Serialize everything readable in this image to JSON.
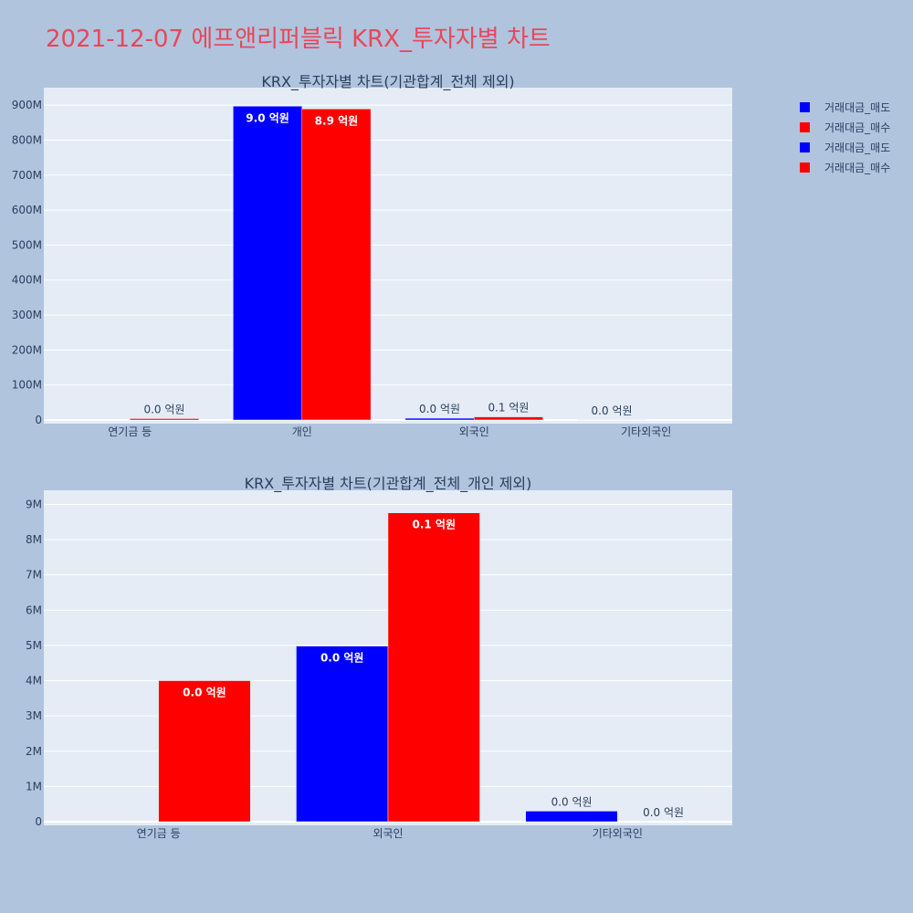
{
  "page_title": "2021-12-07 에프앤리퍼블릭 KRX_투자자별 차트",
  "colors": {
    "sell": "#0000ff",
    "buy": "#ff0000",
    "plot_bg": "#e5ecf6",
    "paper_bg": "#b0c4de",
    "title": "#e8475a",
    "text": "#2a3f5f"
  },
  "legend": [
    {
      "name": "거래대금_매도",
      "color": "#0000ff"
    },
    {
      "name": "거래대금_매수",
      "color": "#ff0000"
    },
    {
      "name": "거래대금_매도",
      "color": "#0000ff"
    },
    {
      "name": "거래대금_매수",
      "color": "#ff0000"
    }
  ],
  "chart_data": [
    {
      "type": "bar",
      "title": "KRX_투자자별 차트(기관합계_전체 제외)",
      "categories": [
        "연기금 등",
        "개인",
        "외국인",
        "기타외국인"
      ],
      "ylim": [
        0,
        950000000
      ],
      "yticks": [
        0,
        100000000,
        200000000,
        300000000,
        400000000,
        500000000,
        600000000,
        700000000,
        800000000,
        900000000
      ],
      "ytick_labels": [
        "0",
        "100M",
        "200M",
        "300M",
        "400M",
        "500M",
        "600M",
        "700M",
        "800M",
        "900M"
      ],
      "series": [
        {
          "name": "거래대금_매도",
          "color": "#0000ff",
          "values": [
            0,
            897000000,
            5000000,
            300000
          ],
          "labels": [
            "",
            "9.0 억원",
            "0.0 억원",
            "0.0 억원"
          ]
        },
        {
          "name": "거래대금_매수",
          "color": "#ff0000",
          "values": [
            4000000,
            889000000,
            8800000,
            0
          ],
          "labels": [
            "0.0 억원",
            "8.9 억원",
            "0.1 억원",
            ""
          ]
        }
      ]
    },
    {
      "type": "bar",
      "title": "KRX_투자자별 차트(기관합계_전체_개인 제외)",
      "categories": [
        "연기금 등",
        "외국인",
        "기타외국인"
      ],
      "ylim": [
        0,
        9400000
      ],
      "yticks": [
        0,
        1000000,
        2000000,
        3000000,
        4000000,
        5000000,
        6000000,
        7000000,
        8000000,
        9000000
      ],
      "ytick_labels": [
        "0",
        "1M",
        "2M",
        "3M",
        "4M",
        "5M",
        "6M",
        "7M",
        "8M",
        "9M"
      ],
      "series": [
        {
          "name": "거래대금_매도",
          "color": "#0000ff",
          "values": [
            0,
            4980000,
            300000
          ],
          "labels": [
            "",
            "0.0 억원",
            "0.0 억원"
          ]
        },
        {
          "name": "거래대금_매수",
          "color": "#ff0000",
          "values": [
            4000000,
            8760000,
            0
          ],
          "labels": [
            "0.0 억원",
            "0.1 억원",
            "0.0 억원"
          ]
        }
      ]
    }
  ]
}
